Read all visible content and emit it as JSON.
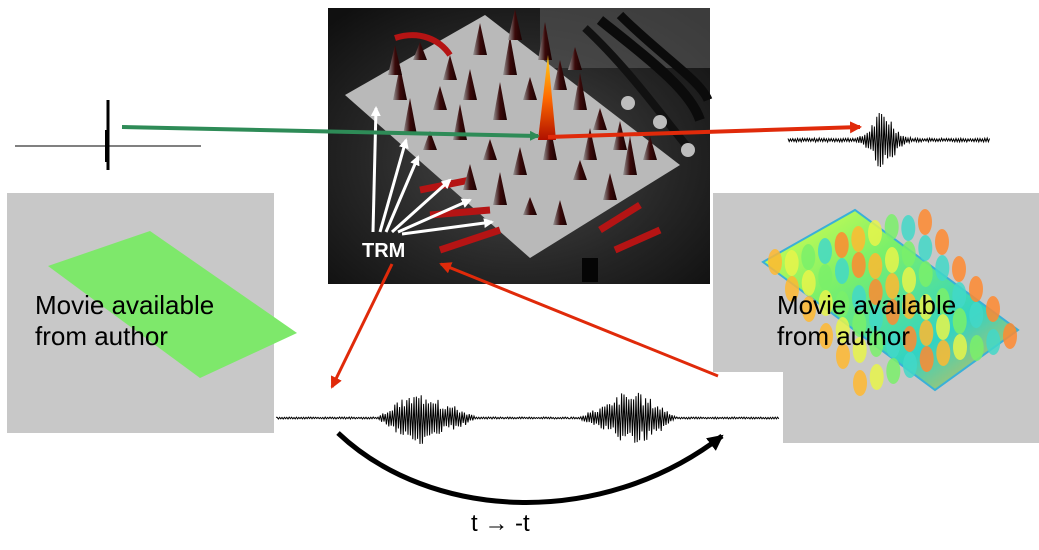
{
  "left_panel": {
    "caption_line1": "Movie available",
    "caption_line2": "from author",
    "bg_color": "#c8c8c8",
    "plate_color": "#7ee86b"
  },
  "right_panel": {
    "caption_line1": "Movie available",
    "caption_line2": "from author",
    "bg_color": "#c8c8c8"
  },
  "photo": {
    "label": "TRM"
  },
  "time_reversal": {
    "label": "t  →  -t"
  },
  "colors": {
    "green_arrow": "#2e8b57",
    "red_arrow": "#e02a0a",
    "black": "#000000",
    "white_arrow": "#ffffff"
  }
}
